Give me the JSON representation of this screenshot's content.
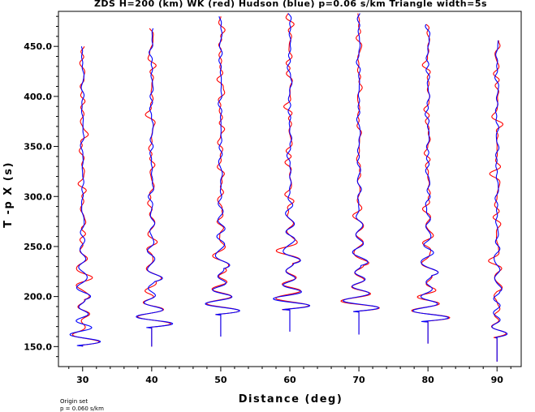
{
  "chart_data": {
    "type": "line",
    "title": "ZDS H=200 (km) WK (red) Hudson (blue) p=0.06 s/km Triangle width=5s",
    "xlabel": "Distance (deg)",
    "ylabel": "T -p X (s)",
    "xlim": [
      26.5,
      93.5
    ],
    "ylim": [
      130,
      485
    ],
    "x_ticks": [
      30,
      40,
      50,
      60,
      70,
      80,
      90
    ],
    "x_tick_labels": [
      "30",
      "40",
      "50",
      "60",
      "70",
      "80",
      "90"
    ],
    "y_ticks": [
      150,
      200,
      250,
      300,
      350,
      400,
      450
    ],
    "y_tick_labels": [
      "150.0",
      "200.0",
      "250.0",
      "300.0",
      "350.0",
      "400.0",
      "450.0"
    ],
    "grid": false,
    "series": [
      {
        "color": "#ff0000",
        "traces": [
          {
            "distance": 30,
            "start": 150,
            "end": 450,
            "arrival": 152,
            "amp": 2.8
          },
          {
            "distance": 40,
            "start": 150,
            "end": 468,
            "arrival": 170,
            "amp": 3.2
          },
          {
            "distance": 50,
            "start": 160,
            "end": 480,
            "arrival": 183,
            "amp": 3.3
          },
          {
            "distance": 60,
            "start": 165,
            "end": 483,
            "arrival": 188,
            "amp": 3.4
          },
          {
            "distance": 70,
            "start": 162,
            "end": 483,
            "arrival": 186,
            "amp": 3.4
          },
          {
            "distance": 80,
            "start": 153,
            "end": 472,
            "arrival": 176,
            "amp": 3.4
          },
          {
            "distance": 90,
            "start": 135,
            "end": 456,
            "arrival": 160,
            "amp": 1.4
          }
        ]
      },
      {
        "color": "#0000ff",
        "traces": [
          {
            "distance": 30,
            "start": 150,
            "end": 450,
            "arrival": 152,
            "amp": 2.8
          },
          {
            "distance": 40,
            "start": 150,
            "end": 468,
            "arrival": 170,
            "amp": 3.2
          },
          {
            "distance": 50,
            "start": 160,
            "end": 480,
            "arrival": 183,
            "amp": 3.3
          },
          {
            "distance": 60,
            "start": 165,
            "end": 483,
            "arrival": 188,
            "amp": 3.4
          },
          {
            "distance": 70,
            "start": 162,
            "end": 483,
            "arrival": 186,
            "amp": 3.4
          },
          {
            "distance": 80,
            "start": 153,
            "end": 472,
            "arrival": 176,
            "amp": 3.4
          },
          {
            "distance": 90,
            "start": 135,
            "end": 456,
            "arrival": 160,
            "amp": 1.4
          }
        ]
      }
    ]
  },
  "notes": {
    "line1": "Origin set",
    "line2": "p = 0.060 s/km"
  }
}
